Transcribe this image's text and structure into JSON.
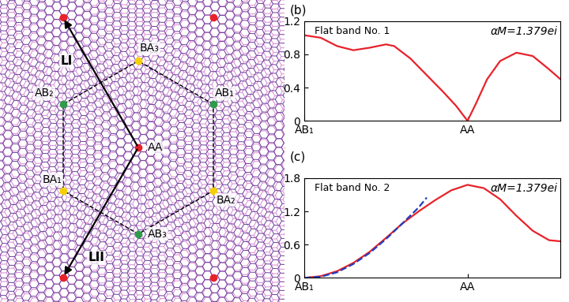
{
  "diagram": {
    "sites": [
      "AA",
      "AB₁",
      "AB₂",
      "AB₃",
      "BA₁",
      "BA₂",
      "BA₃"
    ],
    "vectors": [
      "LI",
      "LII"
    ]
  },
  "chart_data": [
    {
      "type": "line",
      "panel_label": "(b)",
      "title": "Flat band No. 1",
      "annotation": "αM=1.379ei",
      "xlim": [
        0,
        1.57
      ],
      "xticks": [
        {
          "value": 0,
          "label": "AB₁"
        },
        {
          "value": 1,
          "label": "AA"
        }
      ],
      "ylim": [
        0,
        1.2
      ],
      "yticks": [
        0,
        0.4,
        0.8,
        1.2
      ],
      "series": [
        {
          "color": "#e8222a",
          "line_style": "solid",
          "x": [
            0,
            0.1,
            0.2,
            0.3,
            0.4,
            0.5,
            0.55,
            0.65,
            0.75,
            0.85,
            0.93,
            1.0,
            1.05,
            1.12,
            1.2,
            1.3,
            1.4,
            1.5,
            1.57
          ],
          "values": [
            1.03,
            1.0,
            0.9,
            0.85,
            0.88,
            0.92,
            0.9,
            0.75,
            0.55,
            0.35,
            0.18,
            0.0,
            0.2,
            0.5,
            0.72,
            0.82,
            0.78,
            0.62,
            0.5
          ]
        }
      ]
    },
    {
      "type": "line",
      "panel_label": "(c)",
      "title": "Flat band No. 2",
      "annotation": "αM=1.379ei",
      "xlim": [
        0,
        1.57
      ],
      "xticks": [
        {
          "value": 0,
          "label": "AB₁"
        },
        {
          "value": 1,
          "label": "AA"
        }
      ],
      "ylim": [
        0,
        1.8
      ],
      "yticks": [
        0,
        0.6,
        1.2,
        1.8
      ],
      "series": [
        {
          "color": "#e8222a",
          "line_style": "solid",
          "x": [
            0,
            0.1,
            0.2,
            0.3,
            0.4,
            0.5,
            0.6,
            0.7,
            0.8,
            0.9,
            1.0,
            1.1,
            1.2,
            1.3,
            1.4,
            1.5,
            1.57
          ],
          "values": [
            0,
            0.03,
            0.12,
            0.27,
            0.47,
            0.72,
            0.98,
            1.2,
            1.4,
            1.58,
            1.68,
            1.62,
            1.42,
            1.12,
            0.85,
            0.68,
            0.66
          ]
        },
        {
          "color": "#1f3fbf",
          "line_style": "dashed",
          "x": [
            0,
            0.1,
            0.2,
            0.3,
            0.4,
            0.5,
            0.6,
            0.7,
            0.75
          ],
          "values": [
            0,
            0.02,
            0.1,
            0.25,
            0.45,
            0.7,
            0.98,
            1.27,
            1.45
          ]
        }
      ]
    }
  ]
}
